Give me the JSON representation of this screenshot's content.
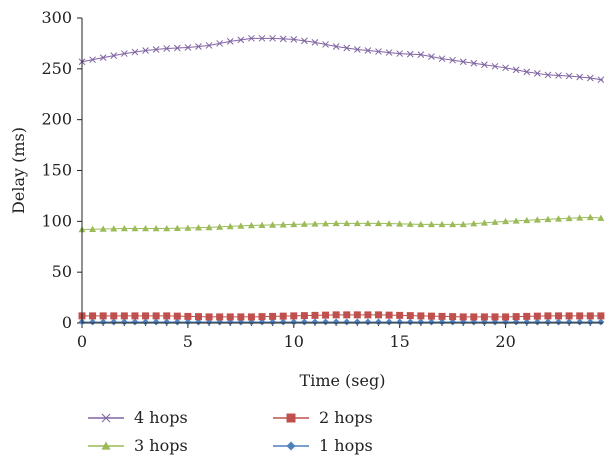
{
  "chart_data": {
    "type": "line",
    "xlabel": "Time (seg)",
    "ylabel": "Delay (ms)",
    "xlim": [
      0,
      24.6
    ],
    "ylim": [
      0,
      300
    ],
    "xticks": [
      "0",
      "5",
      "10",
      "15",
      "20"
    ],
    "yticks": [
      "0",
      "50",
      "100",
      "150",
      "200",
      "250",
      "300"
    ],
    "grid": false,
    "legend_position": "bottom",
    "series": [
      {
        "name": "4 hops",
        "color": "#8064a2",
        "marker": "x",
        "x": [
          0,
          1,
          2,
          3,
          4,
          5,
          6,
          7,
          8,
          9,
          10,
          11,
          12,
          13,
          14,
          15,
          16,
          17,
          18,
          19,
          20,
          21,
          22,
          23,
          24,
          24.6
        ],
        "y": [
          257,
          261,
          265,
          268,
          270,
          271,
          273,
          277,
          280,
          280,
          279,
          276,
          272,
          269,
          267,
          265,
          264,
          260,
          257,
          254,
          251,
          247,
          244,
          243,
          241,
          239
        ]
      },
      {
        "name": "3 hops",
        "color": "#9bbb59",
        "marker": "triangle",
        "x": [
          0,
          2,
          4,
          6,
          8,
          10,
          12,
          14,
          16,
          18,
          20,
          22,
          24,
          24.6
        ],
        "y": [
          92,
          93,
          93,
          94,
          96,
          97,
          98,
          98,
          97,
          97,
          100,
          102,
          104,
          103
        ]
      },
      {
        "name": "2 hops",
        "color": "#c0504d",
        "marker": "square",
        "x": [
          0,
          2,
          4,
          6,
          8,
          10,
          12,
          14,
          16,
          18,
          20,
          22,
          24,
          24.6
        ],
        "y": [
          7,
          7,
          7,
          6,
          6,
          7,
          8,
          8,
          7,
          6,
          6,
          7,
          7,
          7
        ]
      },
      {
        "name": "1 hops",
        "color": "#4f81bd",
        "marker": "diamond",
        "x": [
          0,
          2,
          4,
          6,
          8,
          10,
          12,
          14,
          16,
          18,
          20,
          22,
          24,
          24.6
        ],
        "y": [
          1,
          1,
          1,
          1,
          1,
          1,
          1,
          1,
          1,
          1,
          1,
          1,
          1,
          1
        ]
      }
    ]
  }
}
